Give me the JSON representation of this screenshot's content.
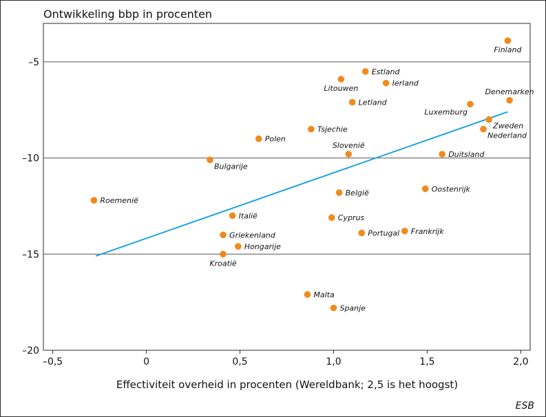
{
  "chart_data": {
    "type": "scatter",
    "title": "Ontwikkeling bbp in procenten",
    "xlabel": "Effectiviteit overheid in procenten (Wereldbank; 2,5 is het hoogst)",
    "ylabel": "",
    "source": "ESB",
    "xlim": [
      -0.55,
      2.05
    ],
    "ylim": [
      -20,
      -3
    ],
    "x_ticks": [
      -0.5,
      0,
      0.5,
      1.0,
      1.5,
      2.0
    ],
    "x_tick_labels": [
      "–0,5",
      "0",
      "0,5",
      "1,0",
      "1,5",
      "2,0"
    ],
    "y_ticks": [
      -5,
      -10,
      -15,
      -20
    ],
    "y_tick_labels": [
      "–5",
      "–10",
      "–15",
      "–20"
    ],
    "grid": {
      "horizontal": true,
      "vertical": false
    },
    "colors": {
      "points": "#f08a1c",
      "trendline": "#1aa3e0",
      "grid": "#555555"
    },
    "points": [
      {
        "label": "Finland",
        "x": 1.93,
        "y": -3.9,
        "label_pos": "below"
      },
      {
        "label": "Estland",
        "x": 1.17,
        "y": -5.5,
        "label_pos": "right"
      },
      {
        "label": "Litouwen",
        "x": 1.04,
        "y": -5.9,
        "label_pos": "below"
      },
      {
        "label": "Ierland",
        "x": 1.28,
        "y": -6.1,
        "label_pos": "right"
      },
      {
        "label": "Letland",
        "x": 1.1,
        "y": -7.1,
        "label_pos": "right"
      },
      {
        "label": "Denemarken",
        "x": 1.94,
        "y": -7.0,
        "label_pos": "above"
      },
      {
        "label": "Luxemburg",
        "x": 1.73,
        "y": -7.2,
        "label_pos": "below-left"
      },
      {
        "label": "Zweden",
        "x": 1.83,
        "y": -8.0,
        "label_pos": "below-right"
      },
      {
        "label": "Nederland",
        "x": 1.8,
        "y": -8.5,
        "label_pos": "below-right"
      },
      {
        "label": "Tsjechie",
        "x": 0.88,
        "y": -8.5,
        "label_pos": "right"
      },
      {
        "label": "Polen",
        "x": 0.6,
        "y": -9.0,
        "label_pos": "right"
      },
      {
        "label": "Slovenië",
        "x": 1.08,
        "y": -9.8,
        "label_pos": "above"
      },
      {
        "label": "Duitsland",
        "x": 1.58,
        "y": -9.8,
        "label_pos": "right"
      },
      {
        "label": "Bulgarije",
        "x": 0.34,
        "y": -10.1,
        "label_pos": "below-right"
      },
      {
        "label": "Oostenrijk",
        "x": 1.49,
        "y": -11.6,
        "label_pos": "right"
      },
      {
        "label": "België",
        "x": 1.03,
        "y": -11.8,
        "label_pos": "right"
      },
      {
        "label": "Roemenië",
        "x": -0.28,
        "y": -12.2,
        "label_pos": "right"
      },
      {
        "label": "Italië",
        "x": 0.46,
        "y": -13.0,
        "label_pos": "right"
      },
      {
        "label": "Cyprus",
        "x": 0.99,
        "y": -13.1,
        "label_pos": "right"
      },
      {
        "label": "Frankrijk",
        "x": 1.38,
        "y": -13.8,
        "label_pos": "right"
      },
      {
        "label": "Portugal",
        "x": 1.15,
        "y": -13.9,
        "label_pos": "right"
      },
      {
        "label": "Griekenland",
        "x": 0.41,
        "y": -14.0,
        "label_pos": "right"
      },
      {
        "label": "Hongarije",
        "x": 0.49,
        "y": -14.6,
        "label_pos": "right"
      },
      {
        "label": "Kroatië",
        "x": 0.41,
        "y": -15.0,
        "label_pos": "below"
      },
      {
        "label": "Malta",
        "x": 0.86,
        "y": -17.1,
        "label_pos": "right"
      },
      {
        "label": "Spanje",
        "x": 1.0,
        "y": -17.8,
        "label_pos": "right"
      }
    ],
    "trendline": {
      "x": [
        -0.27,
        1.93
      ],
      "y": [
        -15.1,
        -7.6
      ]
    }
  }
}
